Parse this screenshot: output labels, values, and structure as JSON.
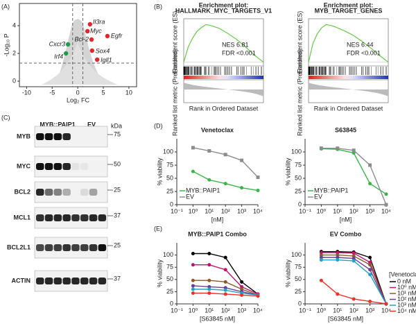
{
  "figure": {
    "panel_labels": [
      "(A)",
      "(B)",
      "(C)",
      "(D)",
      "(E)"
    ]
  },
  "chart_data": [
    {
      "type": "scatter",
      "xlabel": "Log₂ FC",
      "ylabel": "-Log₁₀ P",
      "xlim": [
        -11.4,
        11.5
      ],
      "xticks": [
        -10,
        -5,
        0,
        5,
        10
      ],
      "ylim": [
        -0.4,
        5.6
      ],
      "yticks": [
        0,
        2,
        4
      ],
      "vlines": [
        -1,
        1
      ],
      "hline": 1.3,
      "points": [
        {
          "label": "Il3ra",
          "x": 2.4,
          "y": 4.1,
          "color": "#e3262b"
        },
        {
          "label": "Myc",
          "x": 1.9,
          "y": 3.6,
          "color": "#e3262b"
        },
        {
          "label": "Egfr",
          "x": 5.8,
          "y": 3.25,
          "color": "#e3262b"
        },
        {
          "label": "Bcl-2",
          "x": 2.7,
          "y": 3.0,
          "color": "#e3262b"
        },
        {
          "label": "Sox4",
          "x": 2.8,
          "y": 2.2,
          "color": "#e3262b"
        },
        {
          "label": "Igll1",
          "x": 3.8,
          "y": 1.55,
          "color": "#e3262b"
        },
        {
          "label": "Cxcr3",
          "x": -1.9,
          "y": 2.65,
          "color": "#1f9e4a"
        },
        {
          "label": "Irf4",
          "x": -2.3,
          "y": 2.0,
          "color": "#1f9e4a"
        }
      ]
    },
    {
      "type": "gsea",
      "title": [
        "Enrichment plot:",
        "HALLMARK_MYC_TARGETS_V1"
      ],
      "ylabel": "Enrichment score (ES)",
      "ylabel2": "Ranked list metric (PreRanked)",
      "xlabel": "Rank in Ordered Dataset",
      "annotations": [
        "NES 6.81",
        "FDR <0.001"
      ],
      "color": "#5cc43a",
      "xlim": [
        0,
        18000
      ],
      "ylim": [
        -0.05,
        0.55
      ],
      "x": [
        0,
        1000,
        2000,
        3000,
        4000,
        5000,
        6000,
        8000,
        10000,
        12000,
        14000,
        16000,
        18000
      ],
      "values": [
        0,
        0.2,
        0.32,
        0.41,
        0.46,
        0.5,
        0.49,
        0.45,
        0.38,
        0.3,
        0.2,
        0.09,
        0
      ]
    },
    {
      "type": "gsea",
      "title": [
        "Enrichment plot:",
        "MYB_TARGET_GENES"
      ],
      "ylabel": "Enrichment score (ES)",
      "ylabel2": "Ranked list metric (PreRanked)",
      "xlabel": "Rank in Ordered Dataset",
      "annotations": [
        "NES 6.44",
        "FDR <0.001"
      ],
      "color": "#5cc43a",
      "xlim": [
        0,
        18000
      ],
      "ylim": [
        -0.05,
        0.55
      ],
      "x": [
        0,
        1000,
        2000,
        3000,
        4000,
        5000,
        6000,
        8000,
        10000,
        12000,
        14000,
        16000,
        18000
      ],
      "values": [
        0,
        0.25,
        0.38,
        0.46,
        0.5,
        0.49,
        0.47,
        0.42,
        0.36,
        0.28,
        0.19,
        0.09,
        0
      ]
    },
    {
      "type": "line",
      "title": "Venetoclax",
      "xlabel": "[nM]",
      "ylabel": "% viability",
      "xscale": "log",
      "xlim": [
        0.1,
        10000
      ],
      "xticks": [
        {
          "value": 0.1,
          "label": "10⁻¹"
        },
        {
          "value": 1,
          "label": "10⁰"
        },
        {
          "value": 10,
          "label": "10¹"
        },
        {
          "value": 100,
          "label": "10²"
        },
        {
          "value": 1000,
          "label": "10³"
        },
        {
          "value": 10000,
          "label": "10⁴"
        }
      ],
      "ylim": [
        0,
        125
      ],
      "yticks": [
        0,
        25,
        50,
        75,
        100
      ],
      "legend": "lower left",
      "x": [
        1,
        10,
        100,
        1000,
        10000
      ],
      "series": [
        {
          "name": "MYB::PAIP1",
          "color": "#3cb44b",
          "marker": "circle",
          "values": [
            63,
            47,
            40,
            32,
            27
          ]
        },
        {
          "name": "EV",
          "color": "#8c8c8c",
          "marker": "square",
          "values": [
            108,
            102,
            95,
            84,
            52
          ]
        }
      ]
    },
    {
      "type": "line",
      "title": "S63845",
      "xlabel": "[nM]",
      "ylabel": "% viability",
      "xscale": "log",
      "xlim": [
        0.1,
        10000
      ],
      "xticks": [
        {
          "value": 0.1,
          "label": "10⁻¹"
        },
        {
          "value": 1,
          "label": "10⁰"
        },
        {
          "value": 10,
          "label": "10¹"
        },
        {
          "value": 100,
          "label": "10²"
        },
        {
          "value": 1000,
          "label": "10³"
        },
        {
          "value": 10000,
          "label": "10⁴"
        }
      ],
      "ylim": [
        0,
        125
      ],
      "yticks": [
        0,
        25,
        50,
        75,
        100
      ],
      "legend": "lower left",
      "x": [
        1,
        10,
        100,
        1000,
        10000
      ],
      "series": [
        {
          "name": "MYB::PAIP1",
          "color": "#3cb44b",
          "marker": "circle",
          "values": [
            106,
            105,
            98,
            40,
            20
          ]
        },
        {
          "name": "EV",
          "color": "#8c8c8c",
          "marker": "square",
          "values": [
            107,
            107,
            103,
            75,
            0
          ]
        }
      ]
    },
    {
      "type": "line",
      "title": "MYB::PAIP1 Combo",
      "xlabel": "[S63845 nM]",
      "ylabel": "% viability",
      "xscale": "log",
      "xlim": [
        0.1,
        10000
      ],
      "xticks": [
        {
          "value": 0.1,
          "label": "10⁻¹"
        },
        {
          "value": 1,
          "label": "10⁰"
        },
        {
          "value": 10,
          "label": "10¹"
        },
        {
          "value": 100,
          "label": "10²"
        },
        {
          "value": 1000,
          "label": "10³"
        },
        {
          "value": 10000,
          "label": "10⁴"
        }
      ],
      "ylim": [
        0,
        125
      ],
      "yticks": [
        0,
        25,
        50,
        75,
        100
      ],
      "x": [
        1,
        10,
        100,
        1000,
        10000
      ],
      "series": [
        {
          "color": "#000000",
          "marker": "circle",
          "values": [
            103,
            103,
            95,
            45,
            20
          ]
        },
        {
          "color": "#c0146e",
          "marker": "circle",
          "values": [
            80,
            80,
            70,
            35,
            20
          ]
        },
        {
          "color": "#8b5a2b",
          "marker": "circle",
          "values": [
            48,
            48,
            45,
            30,
            18
          ]
        },
        {
          "color": "#6a3d9a",
          "marker": "circle",
          "values": [
            37,
            35,
            33,
            25,
            18
          ]
        },
        {
          "color": "#1fa3c4",
          "marker": "circle",
          "values": [
            30,
            30,
            28,
            22,
            18
          ]
        },
        {
          "color": "#e8332a",
          "marker": "circle",
          "values": [
            22,
            22,
            20,
            18,
            16
          ]
        }
      ]
    },
    {
      "type": "line",
      "title": "EV Combo",
      "xlabel": "[S63845 nM]",
      "ylabel": "% viability",
      "xscale": "log",
      "xlim": [
        0.1,
        10000
      ],
      "xticks": [
        {
          "value": 0.1,
          "label": "10⁻¹"
        },
        {
          "value": 1,
          "label": "10⁰"
        },
        {
          "value": 10,
          "label": "10¹"
        },
        {
          "value": 100,
          "label": "10²"
        },
        {
          "value": 1000,
          "label": "10³"
        },
        {
          "value": 10000,
          "label": "10⁴"
        }
      ],
      "ylim": [
        0,
        125
      ],
      "yticks": [
        0,
        25,
        50,
        75,
        100
      ],
      "legend": "right",
      "legend_title": "[Venetoclax]",
      "x": [
        1,
        10,
        100,
        1000,
        10000
      ],
      "series": [
        {
          "name": "0 nM",
          "color": "#000000",
          "marker": "circle",
          "values": [
            107,
            107,
            106,
            95,
            0
          ]
        },
        {
          "name": "10⁰ nM",
          "color": "#c0146e",
          "marker": "circle",
          "values": [
            105,
            105,
            104,
            85,
            0
          ]
        },
        {
          "name": "10¹ nM",
          "color": "#8b5a2b",
          "marker": "circle",
          "values": [
            100,
            100,
            98,
            80,
            0
          ]
        },
        {
          "name": "10² nM",
          "color": "#6a3d9a",
          "marker": "circle",
          "values": [
            95,
            95,
            93,
            70,
            0
          ]
        },
        {
          "name": "10³ nM",
          "color": "#1fa3c4",
          "marker": "circle",
          "values": [
            90,
            90,
            88,
            60,
            0
          ]
        },
        {
          "name": "10⁴ nM",
          "color": "#e8332a",
          "marker": "circle",
          "values": [
            48,
            20,
            10,
            5,
            0
          ]
        }
      ]
    }
  ],
  "blot": {
    "groups": [
      "MYB::PAIP1",
      "EV"
    ],
    "unit": "kDa",
    "rows": [
      {
        "label": "MYB",
        "kda": "75"
      },
      {
        "label": "MYC",
        "kda": "50"
      },
      {
        "label": "BCL2",
        "kda": "25"
      },
      {
        "label": "MCL1",
        "kda": "37"
      },
      {
        "label": "BCL2L1",
        "kda": "25"
      },
      {
        "label": "ACTIN",
        "kda": "37"
      }
    ]
  }
}
